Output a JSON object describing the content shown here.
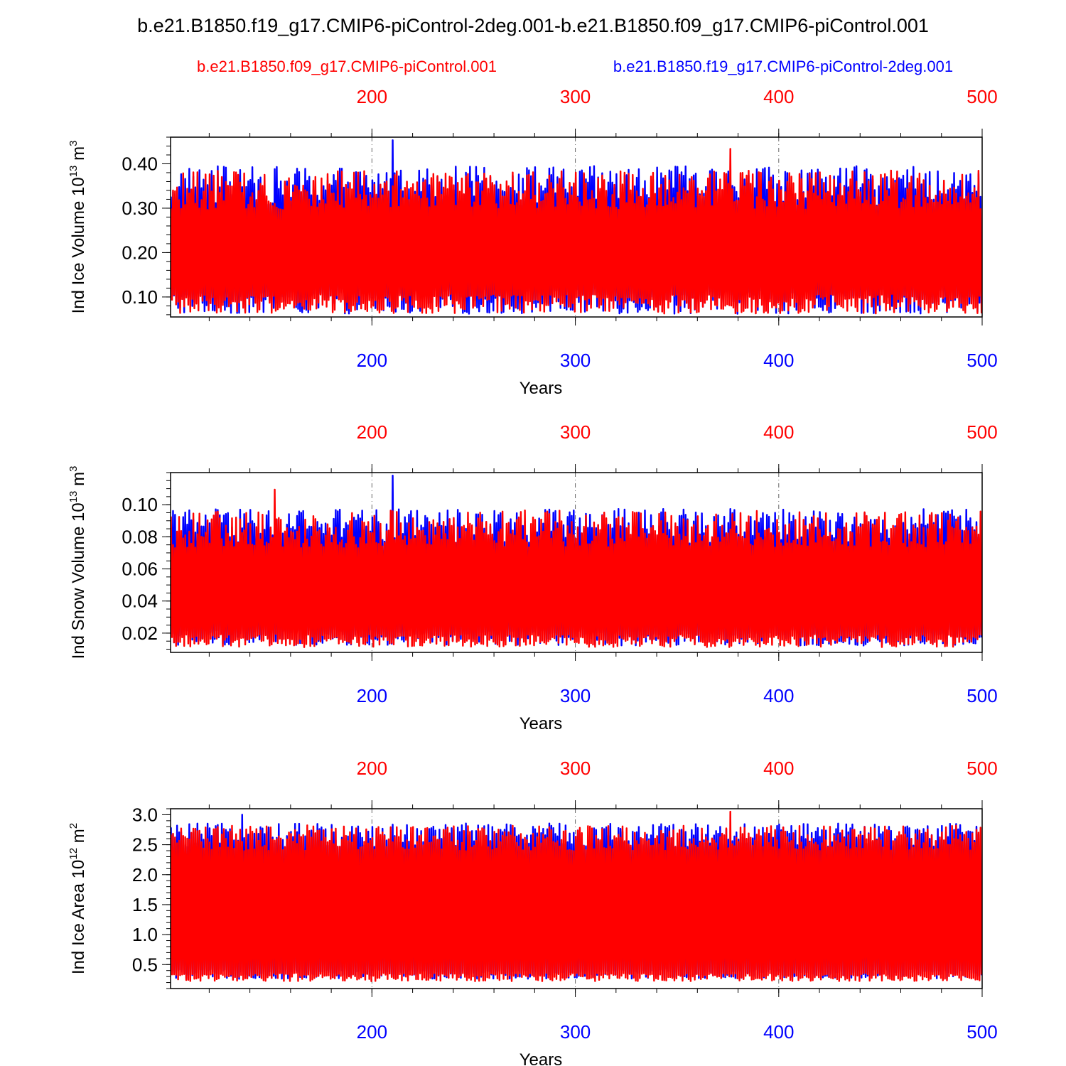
{
  "title": "b.e21.B1850.f19_g17.CMIP6-piControl-2deg.001-b.e21.B1850.f09_g17.CMIP6-piControl.001",
  "legend": [
    {
      "label": "b.e21.B1850.f09_g17.CMIP6-piControl.001",
      "color": "#ff0000"
    },
    {
      "label": "b.e21.B1850.f19_g17.CMIP6-piControl-2deg.001",
      "color": "#0000ff"
    }
  ],
  "colors": {
    "case1": "#ff0000",
    "case2": "#0000ff"
  },
  "chart_data": [
    {
      "type": "line",
      "ylabel": "Ind Ice Volume 10",
      "ylabel_exp": "13",
      "ylabel_unit": " m",
      "ylabel_unit_exp": "3",
      "xlabel": "Years",
      "xlim": [
        101,
        500
      ],
      "ylim": [
        0.055,
        0.46
      ],
      "xticks": [
        200,
        300,
        400,
        500
      ],
      "yticks": [
        {
          "v": 0.1,
          "label": "0.10"
        },
        {
          "v": 0.2,
          "label": "0.20"
        },
        {
          "v": 0.3,
          "label": "0.30"
        },
        {
          "v": 0.4,
          "label": "0.40"
        }
      ],
      "yminor_step": 0.02,
      "series": [
        {
          "name": "b.e21.B1850.f19_g17.CMIP6-piControl-2deg.001",
          "color": "#0000ff",
          "annual_min": 0.085,
          "annual_max": 0.355,
          "min_spread": 0.028,
          "max_spread": 0.045,
          "extreme": {
            "year": 210,
            "value": 0.46
          }
        },
        {
          "name": "b.e21.B1850.f09_g17.CMIP6-piControl.001",
          "color": "#ff0000",
          "annual_min": 0.08,
          "annual_max": 0.345,
          "min_spread": 0.022,
          "max_spread": 0.045,
          "extreme": {
            "year": 376,
            "value": 0.44
          }
        }
      ]
    },
    {
      "type": "line",
      "ylabel": "Ind Snow Volume 10",
      "ylabel_exp": "13",
      "ylabel_unit": " m",
      "ylabel_unit_exp": "3",
      "xlabel": "Years",
      "xlim": [
        101,
        500
      ],
      "ylim": [
        0.008,
        0.12
      ],
      "xticks": [
        200,
        300,
        400,
        500
      ],
      "yticks": [
        {
          "v": 0.02,
          "label": "0.02"
        },
        {
          "v": 0.04,
          "label": "0.04"
        },
        {
          "v": 0.06,
          "label": "0.06"
        },
        {
          "v": 0.08,
          "label": "0.08"
        },
        {
          "v": 0.1,
          "label": "0.10"
        }
      ],
      "yminor_step": 0.005,
      "series": [
        {
          "name": "b.e21.B1850.f19_g17.CMIP6-piControl-2deg.001",
          "color": "#0000ff",
          "annual_min": 0.016,
          "annual_max": 0.088,
          "min_spread": 0.005,
          "max_spread": 0.011,
          "extreme": {
            "year": 210,
            "value": 0.12
          }
        },
        {
          "name": "b.e21.B1850.f09_g17.CMIP6-piControl.001",
          "color": "#ff0000",
          "annual_min": 0.014,
          "annual_max": 0.086,
          "min_spread": 0.004,
          "max_spread": 0.012,
          "extreme": {
            "year": 152,
            "value": 0.111
          }
        }
      ]
    },
    {
      "type": "line",
      "ylabel": "Ind Ice Area 10",
      "ylabel_exp": "12",
      "ylabel_unit": " m",
      "ylabel_unit_exp": "2",
      "xlabel": "Years",
      "xlim": [
        101,
        500
      ],
      "ylim": [
        0.1,
        3.1
      ],
      "xticks": [
        200,
        300,
        400,
        500
      ],
      "yticks": [
        {
          "v": 0.5,
          "label": "0.5"
        },
        {
          "v": 1.0,
          "label": "1.0"
        },
        {
          "v": 1.5,
          "label": "1.5"
        },
        {
          "v": 2.0,
          "label": "2.0"
        },
        {
          "v": 2.5,
          "label": "2.5"
        },
        {
          "v": 3.0,
          "label": "3.0"
        }
      ],
      "yminor_step": 0.1,
      "series": [
        {
          "name": "b.e21.B1850.f19_g17.CMIP6-piControl-2deg.001",
          "color": "#0000ff",
          "annual_min": 0.3,
          "annual_max": 2.7,
          "min_spread": 0.08,
          "max_spread": 0.2,
          "extreme": {
            "year": 136,
            "value": 3.05
          }
        },
        {
          "name": "b.e21.B1850.f09_g17.CMIP6-piControl.001",
          "color": "#ff0000",
          "annual_min": 0.25,
          "annual_max": 2.65,
          "min_spread": 0.07,
          "max_spread": 0.22,
          "extreme": {
            "year": 376,
            "value": 3.1
          }
        }
      ]
    }
  ]
}
